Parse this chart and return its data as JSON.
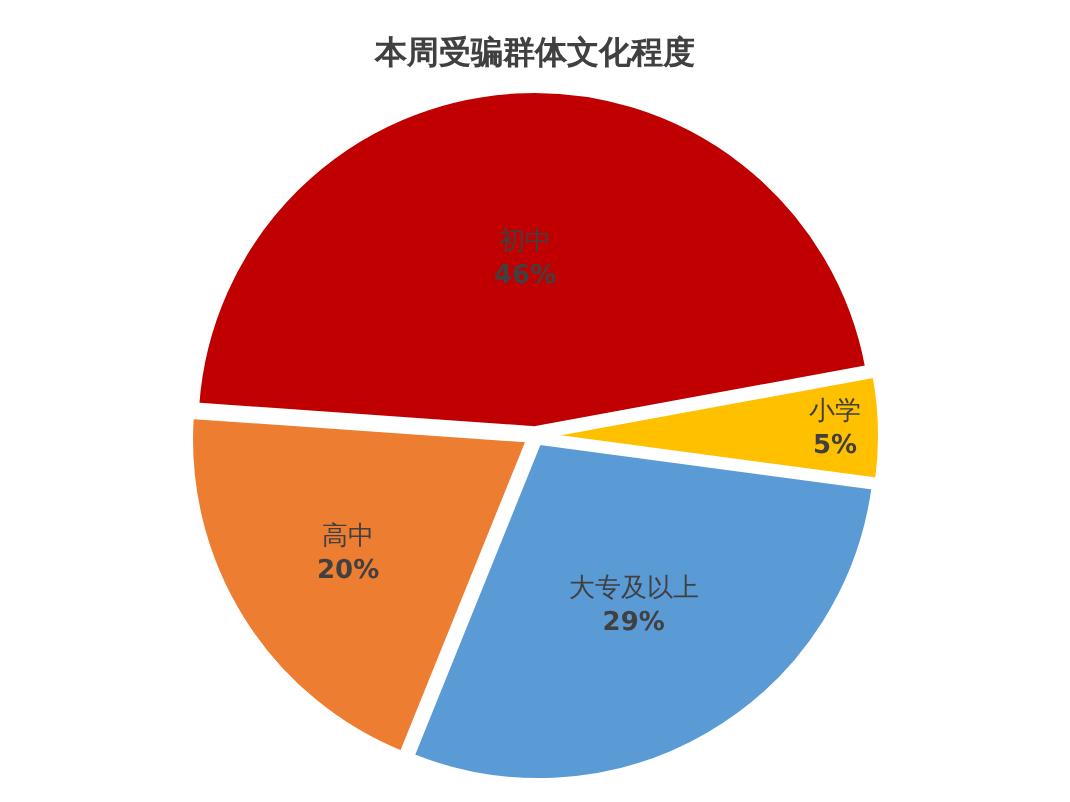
{
  "chart_data": {
    "type": "pie",
    "title": "本周受骗群体文化程度",
    "categories": [
      "初中",
      "小学",
      "大专及以上",
      "高中"
    ],
    "values": [
      46,
      5,
      29,
      20
    ],
    "colors": [
      "#c00000",
      "#ffc000",
      "#5b9bd5",
      "#ed7d31"
    ],
    "value_labels": [
      "46%",
      "5%",
      "29%",
      "20%"
    ],
    "legend": false
  }
}
